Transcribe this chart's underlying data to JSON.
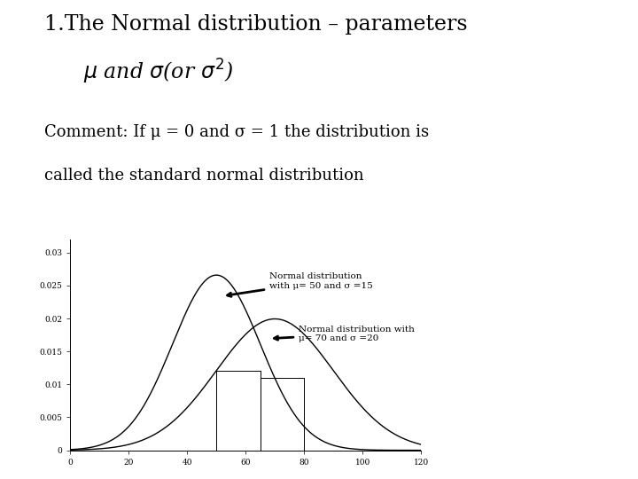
{
  "title_line1": "1.The Normal distribution – parameters",
  "title_line2": "$\\mu$ and $\\sigma$(or $\\sigma^2$)",
  "comment_line1": "Comment: If μ = 0 and σ = 1 the distribution is",
  "comment_line2": "called the standard normal distribution",
  "dist1": {
    "mu": 50,
    "sigma": 15,
    "label": "Normal distribution\nwith μ= 50 and σ =15"
  },
  "dist2": {
    "mu": 70,
    "sigma": 20,
    "label": "Normal distribution with\nμ= 70 and σ =20"
  },
  "xmin": 0,
  "xmax": 120,
  "ymin": 0,
  "ymax": 0.032,
  "ytick_labels": [
    "0",
    "0.005",
    "0.01",
    "0.015",
    "0.02",
    "0.025",
    "0.03"
  ],
  "ytick_vals": [
    0,
    0.005,
    0.01,
    0.015,
    0.02,
    0.025,
    0.03
  ],
  "xticks": [
    0,
    20,
    40,
    60,
    80,
    100,
    120
  ],
  "background_color": "#ffffff",
  "curve_color": "#000000",
  "ann_fontsize": 7.5,
  "comment_fontsize": 13,
  "title_fontsize": 17
}
